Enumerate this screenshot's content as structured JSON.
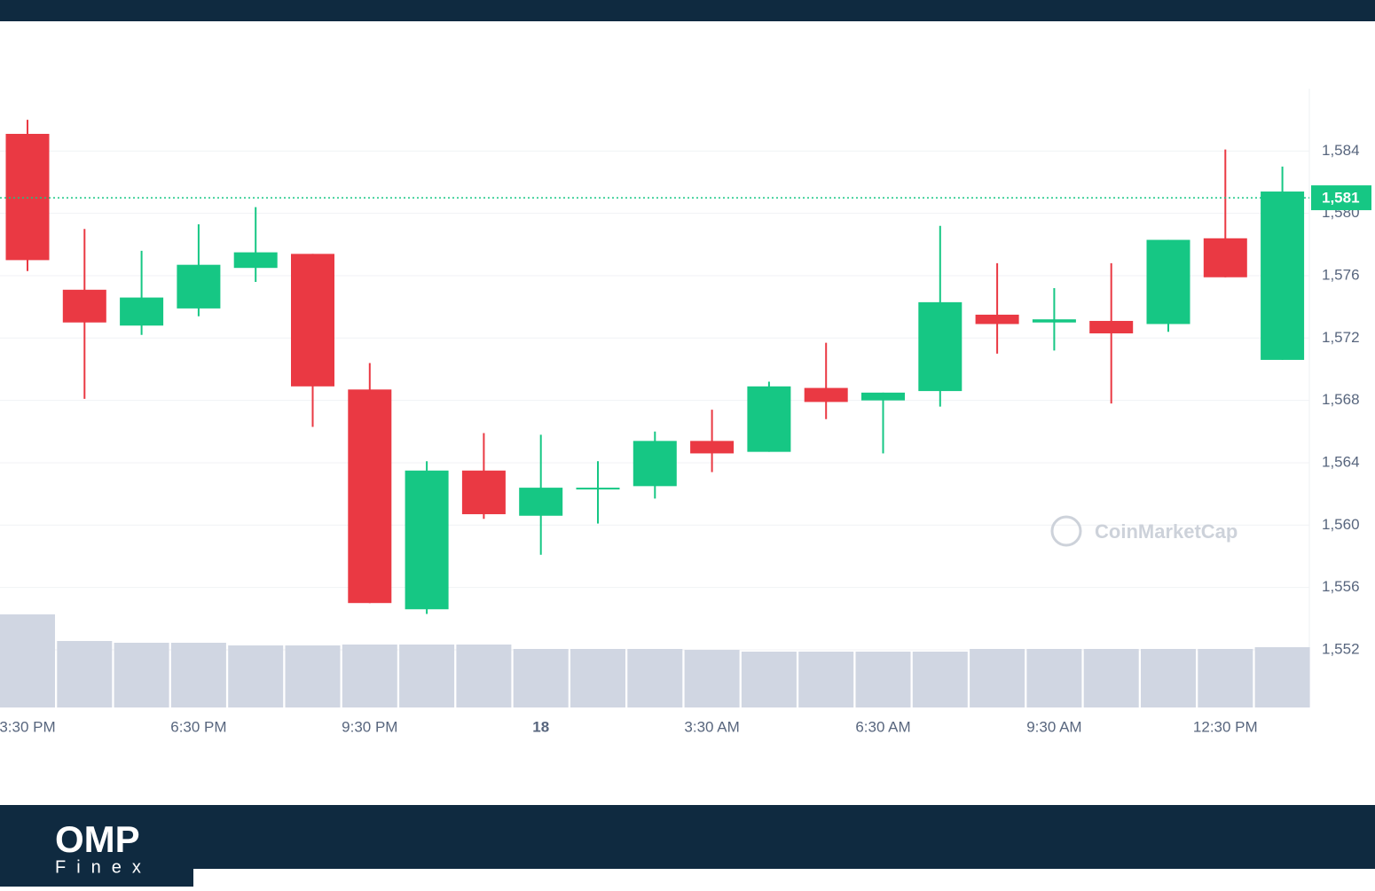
{
  "chart_data": {
    "type": "candlestick",
    "categories": [
      "3:30 PM",
      null,
      null,
      "6:30 PM",
      null,
      null,
      "9:30 PM",
      null,
      null,
      "18",
      null,
      null,
      "3:30 AM",
      null,
      null,
      "6:30 AM",
      null,
      null,
      "9:30 AM",
      null,
      null,
      "12:30 PM",
      null
    ],
    "open": [
      1585.1,
      1575.1,
      1572.8,
      1573.9,
      1576.5,
      1577.4,
      1568.7,
      1554.6,
      1563.5,
      1560.6,
      1562.3,
      1562.5,
      1565.4,
      1564.7,
      1568.8,
      1568.0,
      1568.6,
      1573.5,
      1573.0,
      1573.1,
      1572.9,
      1578.4,
      1570.6
    ],
    "high": [
      1586.0,
      1579.0,
      1577.6,
      1579.3,
      1580.4,
      1577.4,
      1570.4,
      1564.1,
      1565.9,
      1565.8,
      1564.1,
      1566.0,
      1567.4,
      1569.2,
      1571.7,
      1568.5,
      1579.2,
      1576.8,
      1575.2,
      1576.8,
      1578.3,
      1584.1,
      1583.0
    ],
    "low": [
      1576.3,
      1568.1,
      1572.2,
      1573.4,
      1575.6,
      1566.3,
      1555.0,
      1554.3,
      1560.4,
      1558.1,
      1560.1,
      1561.7,
      1563.4,
      1564.7,
      1566.8,
      1564.6,
      1567.6,
      1571.0,
      1571.2,
      1567.8,
      1572.4,
      1575.9,
      1570.6
    ],
    "close": [
      1577.0,
      1573.0,
      1574.6,
      1576.7,
      1577.5,
      1568.9,
      1555.0,
      1563.5,
      1560.7,
      1562.4,
      1562.4,
      1565.4,
      1564.6,
      1568.9,
      1567.9,
      1568.5,
      1574.3,
      1572.9,
      1573.2,
      1572.3,
      1578.3,
      1575.9,
      1581.4
    ],
    "volume": [
      105,
      75,
      73,
      73,
      70,
      70,
      71,
      71,
      71,
      66,
      66,
      66,
      65,
      63,
      63,
      63,
      63,
      66,
      66,
      66,
      66,
      66,
      68
    ],
    "vlim": [
      0,
      105
    ],
    "up_color": "#16c784",
    "down_color": "#ea3943",
    "volume_color": "#d0d6e2",
    "ylim": [
      1548.3,
      1588
    ],
    "yticks": [
      {
        "value": 1552,
        "label": "1,552"
      },
      {
        "value": 1556,
        "label": "1,556"
      },
      {
        "value": 1560,
        "label": "1,560"
      },
      {
        "value": 1564,
        "label": "1,564"
      },
      {
        "value": 1568,
        "label": "1,568"
      },
      {
        "value": 1572,
        "label": "1,572"
      },
      {
        "value": 1576,
        "label": "1,576"
      },
      {
        "value": 1580,
        "label": "1,580"
      },
      {
        "value": 1584,
        "label": "1,584"
      }
    ],
    "last_price": {
      "value": 1581,
      "label": "1,581"
    },
    "watermark": "CoinMarketCap",
    "grid": true
  },
  "branding": {
    "name": "OMP",
    "sub": "Finex"
  }
}
